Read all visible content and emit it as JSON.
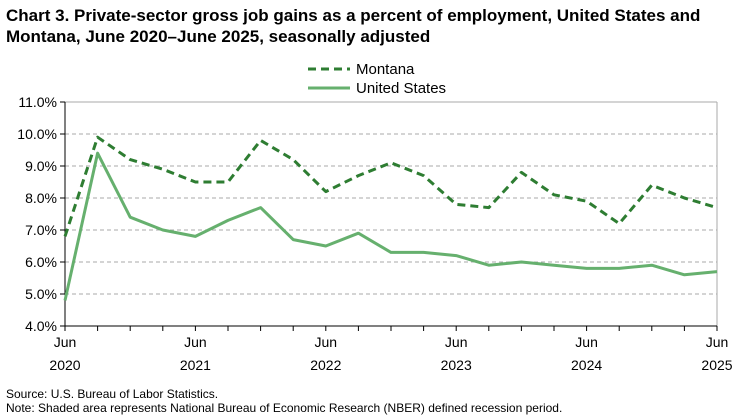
{
  "chart_data": {
    "type": "line",
    "title": "Chart 3. Private-sector gross job gains as a percent of employment, United States and Montana, June 2020–June 2025, seasonally adjusted",
    "x": [
      "Jun 2020",
      "Sep 2020",
      "Dec 2020",
      "Mar 2021",
      "Jun 2021",
      "Sep 2021",
      "Dec 2021",
      "Mar 2022",
      "Jun 2022",
      "Sep 2022",
      "Dec 2022",
      "Mar 2023",
      "Jun 2023",
      "Sep 2023",
      "Dec 2023",
      "Mar 2024",
      "Jun 2024",
      "Sep 2024",
      "Dec 2024",
      "Mar 2025",
      "Jun 2025"
    ],
    "x_tick_labels": [
      {
        "month": "Jun",
        "year": "2020"
      },
      {
        "month": "Jun",
        "year": "2021"
      },
      {
        "month": "Jun",
        "year": "2022"
      },
      {
        "month": "Jun",
        "year": "2023"
      },
      {
        "month": "Jun",
        "year": "2024"
      },
      {
        "month": "Jun",
        "year": "2025"
      }
    ],
    "y_tick_labels": [
      "4.0%",
      "5.0%",
      "6.0%",
      "7.0%",
      "8.0%",
      "9.0%",
      "10.0%",
      "11.0%"
    ],
    "ylim": [
      4,
      11
    ],
    "grid": true,
    "legend_position": "top-center",
    "series": [
      {
        "name": "Montana",
        "style": "dashed",
        "color": "#2e7d32",
        "values": [
          6.8,
          9.9,
          9.2,
          8.9,
          8.5,
          8.5,
          9.8,
          9.2,
          8.2,
          8.7,
          9.1,
          8.7,
          7.8,
          7.7,
          8.8,
          8.1,
          7.9,
          7.2,
          8.4,
          8.0,
          7.7
        ]
      },
      {
        "name": "United States",
        "style": "solid",
        "color": "#66b06e",
        "values": [
          4.8,
          9.4,
          7.4,
          7.0,
          6.8,
          7.3,
          7.7,
          6.7,
          6.5,
          6.9,
          6.3,
          6.3,
          6.2,
          5.9,
          6.0,
          5.9,
          5.8,
          5.8,
          5.9,
          5.6,
          5.7
        ]
      }
    ]
  },
  "footer": {
    "source": "Source: U.S. Bureau of Labor Statistics.",
    "note": "Note: Shaded area represents National Bureau of Economic Research (NBER) defined recession period."
  }
}
